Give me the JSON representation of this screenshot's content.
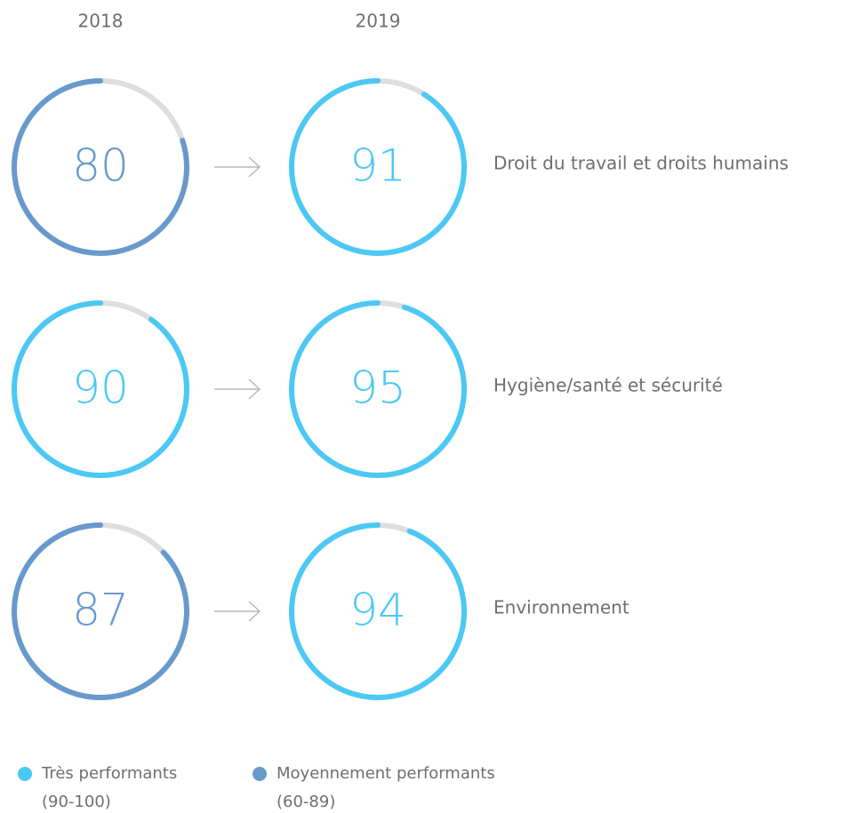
{
  "chart_data": {
    "type": "gauge",
    "categories": [
      "Droit du travail et droits humains",
      "Hygiène/santé et sécurité",
      "Environnement"
    ],
    "series": [
      {
        "name": "2018",
        "values": [
          80,
          90,
          87
        ],
        "colors": [
          "#6899cc",
          "#4cc8f4",
          "#6899cc"
        ]
      },
      {
        "name": "2019",
        "values": [
          91,
          95,
          94
        ],
        "colors": [
          "#4cc8f4",
          "#4cc8f4",
          "#4cc8f4"
        ]
      }
    ],
    "ylim": [
      0,
      100
    ],
    "track_color": "#dedede",
    "legend": [
      {
        "label": "Très performants",
        "range": "(90-100)",
        "color": "#4cc8f4"
      },
      {
        "label": "Moyennement performants",
        "range": "(60-89)",
        "color": "#6899cc"
      }
    ]
  }
}
